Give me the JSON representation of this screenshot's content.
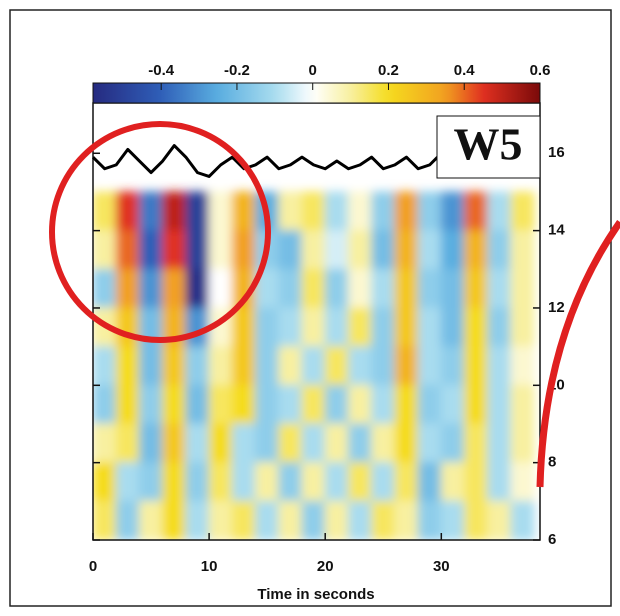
{
  "chart_data": {
    "type": "heatmap",
    "xlabel": "Time in seconds",
    "xlim": [
      0,
      38.5
    ],
    "xticks": [
      0,
      10,
      20,
      30
    ],
    "ylim": [
      6,
      17.3
    ],
    "yticks": [
      6,
      8,
      10,
      12,
      14,
      16
    ],
    "colorbar": {
      "lim": [
        -0.58,
        0.6
      ],
      "ticks": [
        -0.4,
        -0.2,
        0,
        0.2,
        0.4,
        0.6
      ]
    },
    "annotation": "W5",
    "x": [
      1,
      3,
      5,
      7,
      9,
      11,
      13,
      15,
      17,
      19,
      21,
      23,
      25,
      27,
      29,
      31,
      33,
      35,
      37
    ],
    "y": [
      14.5,
      13.5,
      12.5,
      11.5,
      10.5,
      9.5,
      8.5,
      7.5,
      6.5
    ],
    "z": [
      [
        0.15,
        0.45,
        -0.35,
        0.5,
        -0.5,
        0.05,
        0.3,
        -0.25,
        0.1,
        0.15,
        -0.1,
        0.05,
        -0.15,
        0.35,
        -0.15,
        -0.3,
        0.4,
        -0.1,
        0.15
      ],
      [
        0.1,
        0.4,
        -0.4,
        0.45,
        -0.5,
        0.05,
        0.35,
        -0.15,
        -0.2,
        0.1,
        -0.05,
        0.1,
        -0.2,
        0.3,
        -0.1,
        -0.25,
        0.3,
        -0.15,
        0.1
      ],
      [
        -0.15,
        0.35,
        -0.3,
        0.35,
        -0.55,
        0.0,
        0.3,
        -0.1,
        -0.15,
        0.15,
        -0.15,
        0.05,
        -0.1,
        0.25,
        -0.15,
        -0.2,
        0.25,
        -0.1,
        0.1
      ],
      [
        0.1,
        0.25,
        -0.2,
        0.3,
        -0.3,
        0.05,
        0.25,
        -0.15,
        -0.1,
        0.1,
        -0.1,
        0.15,
        -0.15,
        0.25,
        -0.1,
        -0.2,
        0.2,
        -0.15,
        0.1
      ],
      [
        -0.1,
        0.2,
        -0.2,
        0.25,
        -0.15,
        0.1,
        0.25,
        -0.15,
        0.1,
        -0.1,
        0.15,
        -0.1,
        -0.15,
        0.3,
        -0.1,
        -0.15,
        0.2,
        -0.1,
        0.05
      ],
      [
        -0.15,
        0.2,
        -0.15,
        0.2,
        -0.2,
        0.15,
        0.2,
        -0.15,
        -0.1,
        0.15,
        -0.15,
        0.1,
        -0.1,
        0.2,
        -0.15,
        -0.1,
        0.2,
        -0.1,
        0.1
      ],
      [
        0.1,
        0.15,
        -0.2,
        0.25,
        -0.1,
        0.2,
        -0.1,
        -0.15,
        0.15,
        -0.1,
        0.1,
        -0.15,
        0.1,
        0.2,
        -0.1,
        -0.15,
        0.15,
        -0.1,
        0.1
      ],
      [
        0.2,
        -0.1,
        -0.15,
        0.2,
        -0.15,
        0.15,
        -0.1,
        0.1,
        -0.15,
        0.1,
        -0.1,
        0.15,
        -0.1,
        0.15,
        -0.2,
        0.1,
        0.15,
        -0.1,
        0.05
      ],
      [
        0.15,
        -0.15,
        0.1,
        0.2,
        -0.1,
        0.1,
        0.15,
        -0.1,
        0.1,
        -0.15,
        0.1,
        -0.1,
        0.15,
        0.1,
        -0.15,
        -0.1,
        0.15,
        0.1,
        -0.1
      ]
    ],
    "trace": {
      "color": "#000000",
      "x": [
        0,
        1,
        2,
        3,
        4,
        5,
        6,
        7,
        8,
        9,
        10,
        11,
        12,
        13,
        14,
        15,
        16,
        17,
        18,
        19,
        20,
        21,
        22,
        23,
        24,
        25,
        26,
        27,
        28,
        29,
        30,
        31,
        32,
        33,
        34,
        35,
        36,
        37,
        38
      ],
      "values": [
        15.9,
        15.6,
        15.7,
        16.1,
        15.8,
        15.5,
        15.8,
        16.2,
        15.9,
        15.5,
        15.4,
        15.7,
        15.9,
        15.6,
        15.7,
        15.9,
        15.6,
        15.7,
        15.9,
        15.7,
        15.6,
        15.8,
        15.6,
        15.7,
        15.9,
        15.6,
        15.7,
        15.9,
        15.6,
        15.7,
        16.0,
        15.7,
        15.6,
        15.9,
        15.6,
        15.7,
        15.9,
        15.6,
        15.7
      ]
    }
  }
}
